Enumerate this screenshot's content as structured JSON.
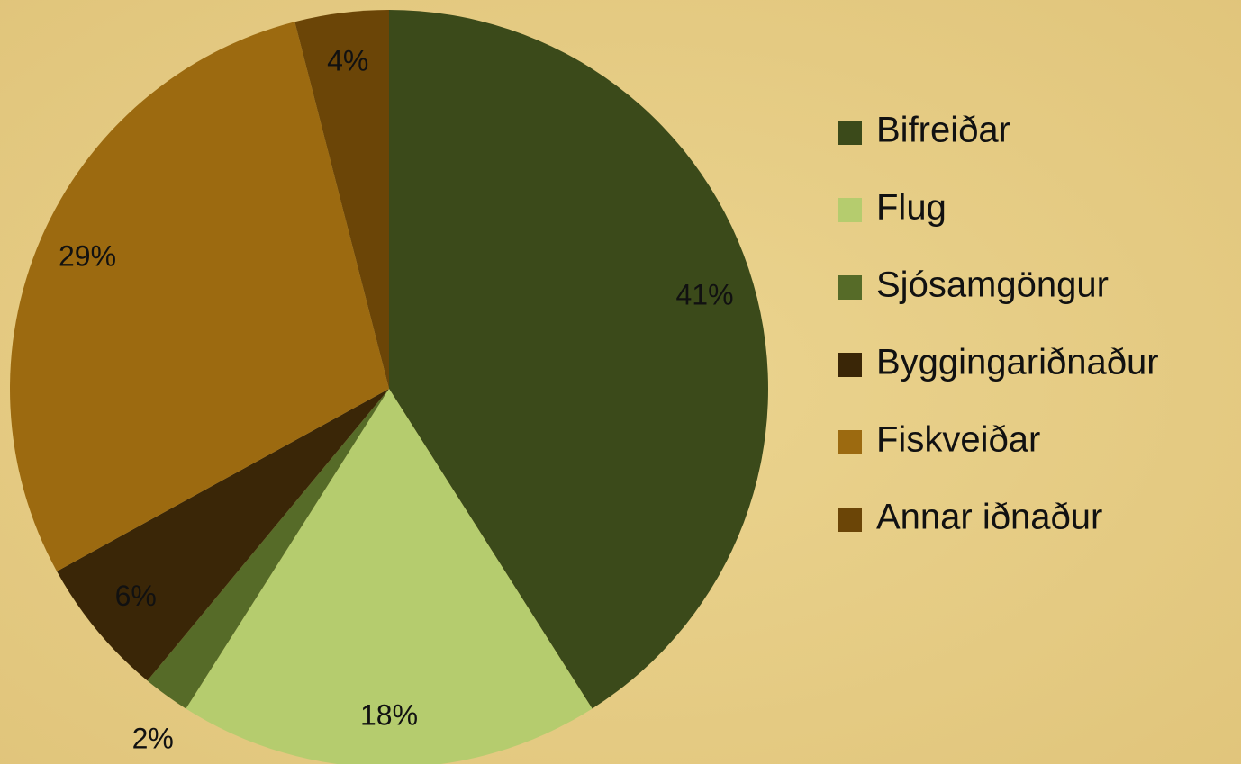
{
  "chart_data": {
    "type": "pie",
    "categories": [
      "Bifreiðar",
      "Flug",
      "Sjósamgöngur",
      "Byggingariðnaður",
      "Fiskveiðar",
      "Annar iðnaður"
    ],
    "values": [
      41,
      18,
      2,
      6,
      29,
      4
    ],
    "value_labels": [
      "41%",
      "18%",
      "2%",
      "6%",
      "29%",
      "4%"
    ],
    "colors": [
      "#3b4a1a",
      "#b5cc6e",
      "#566b28",
      "#3a2607",
      "#9c6a10",
      "#6b4507"
    ],
    "legend": "right"
  }
}
